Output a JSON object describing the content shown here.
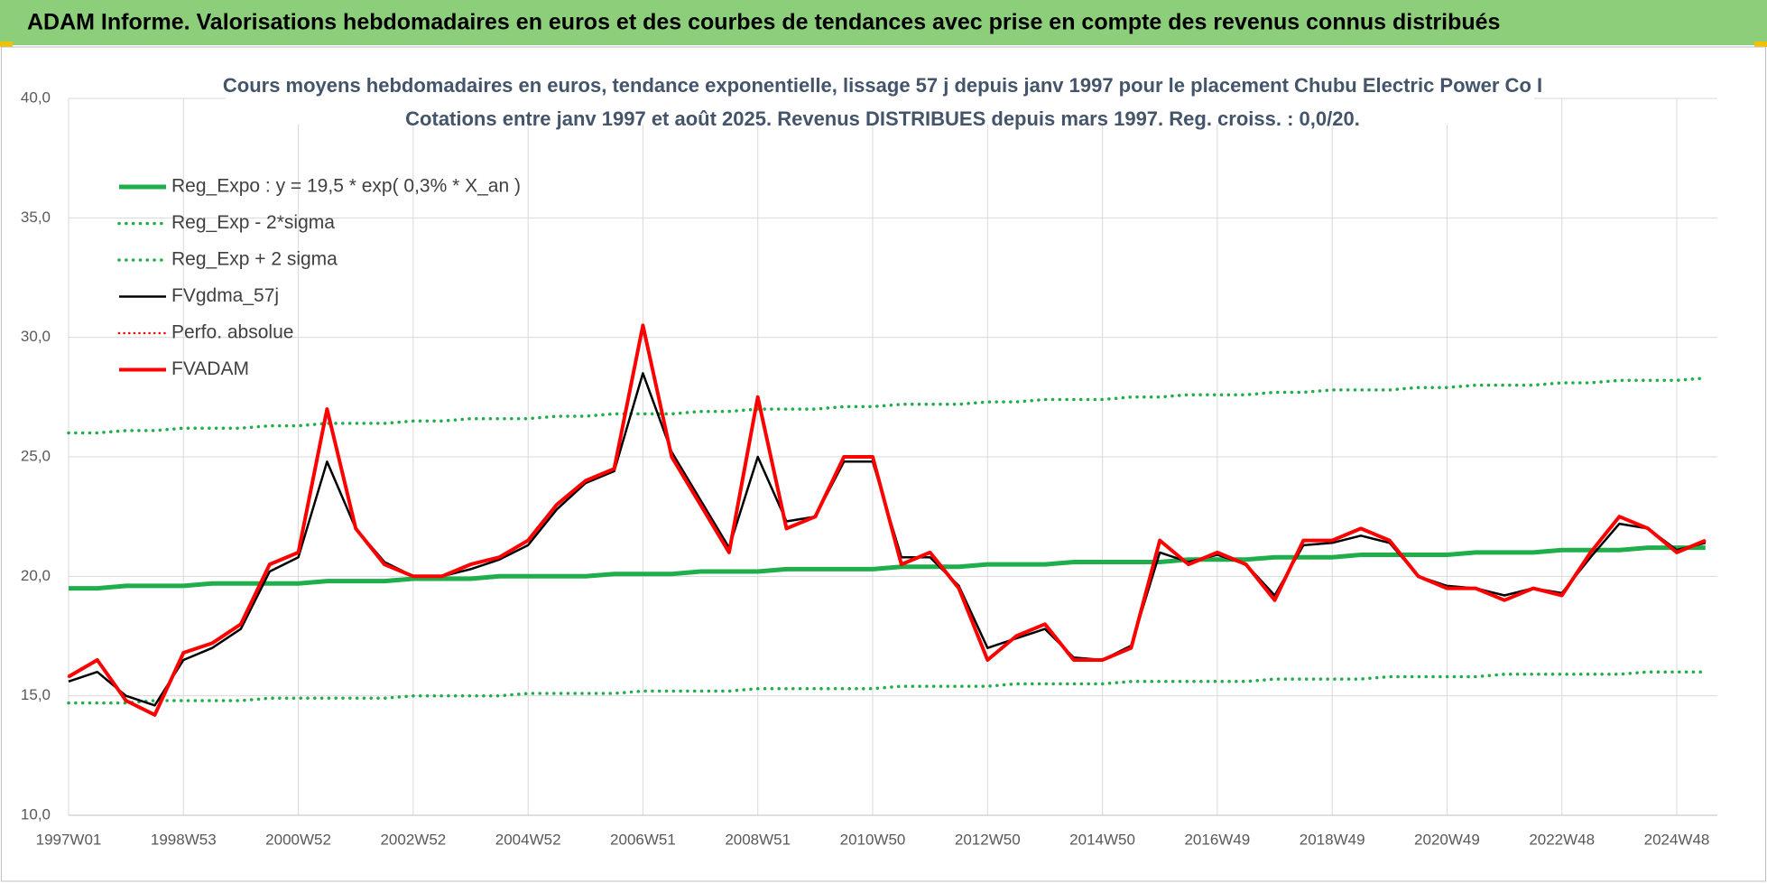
{
  "header": {
    "title": "ADAM Informe. Valorisations hebdomadaires en euros et des courbes de tendances avec prise en compte des revenus connus distribués"
  },
  "chart_data": {
    "type": "line",
    "title": "Cours moyens hebdomadaires en euros, tendance exponentielle, lissage 57 j depuis janv 1997  pour le placement Chubu Electric Power Co I",
    "subtitle": "Cotations entre janv 1997 et août 2025.  Revenus DISTRIBUES depuis mars 1997. Reg. croiss. : 0,0/20.",
    "categories": [
      "1997W01",
      null,
      null,
      null,
      "1998W53",
      null,
      null,
      null,
      "2000W52",
      null,
      null,
      null,
      "2002W52",
      null,
      null,
      null,
      "2004W52",
      null,
      null,
      null,
      "2006W51",
      null,
      null,
      null,
      "2008W51",
      null,
      null,
      null,
      "2010W50",
      null,
      null,
      null,
      "2012W50",
      null,
      null,
      null,
      "2014W50",
      null,
      null,
      null,
      "2016W49",
      null,
      null,
      null,
      "2018W49",
      null,
      null,
      null,
      "2020W49",
      null,
      null,
      null,
      "2022W48",
      null,
      null,
      null,
      "2024W48",
      null
    ],
    "ylim": [
      10,
      40
    ],
    "yticks": [
      {
        "value": 10,
        "label": "10,0"
      },
      {
        "value": 15,
        "label": "15,0"
      },
      {
        "value": 20,
        "label": "20,0"
      },
      {
        "value": 25,
        "label": "25,0"
      },
      {
        "value": 30,
        "label": "30,0"
      },
      {
        "value": 35,
        "label": "35,0"
      },
      {
        "value": 40,
        "label": "40,0"
      }
    ],
    "grid": true,
    "legend": "upper left",
    "series": [
      {
        "name": "Reg_Expo : y = 19,5 * exp( 0,3% *  X_an )",
        "color": "#1fae4b",
        "style": "solid",
        "width": 5,
        "values": [
          19.5,
          19.5,
          19.6,
          19.6,
          19.6,
          19.7,
          19.7,
          19.7,
          19.7,
          19.8,
          19.8,
          19.8,
          19.9,
          19.9,
          19.9,
          20.0,
          20.0,
          20.0,
          20.0,
          20.1,
          20.1,
          20.1,
          20.2,
          20.2,
          20.2,
          20.3,
          20.3,
          20.3,
          20.3,
          20.4,
          20.4,
          20.4,
          20.5,
          20.5,
          20.5,
          20.6,
          20.6,
          20.6,
          20.6,
          20.7,
          20.7,
          20.7,
          20.8,
          20.8,
          20.8,
          20.9,
          20.9,
          20.9,
          20.9,
          21.0,
          21.0,
          21.0,
          21.1,
          21.1,
          21.1,
          21.2,
          21.2,
          21.2
        ]
      },
      {
        "name": "Reg_Exp - 2*sigma",
        "color": "#1fae4b",
        "style": "dotted",
        "width": 3.5,
        "values": [
          14.7,
          14.7,
          14.7,
          14.8,
          14.8,
          14.8,
          14.8,
          14.9,
          14.9,
          14.9,
          14.9,
          14.9,
          15.0,
          15.0,
          15.0,
          15.0,
          15.1,
          15.1,
          15.1,
          15.1,
          15.2,
          15.2,
          15.2,
          15.2,
          15.3,
          15.3,
          15.3,
          15.3,
          15.3,
          15.4,
          15.4,
          15.4,
          15.4,
          15.5,
          15.5,
          15.5,
          15.5,
          15.6,
          15.6,
          15.6,
          15.6,
          15.6,
          15.7,
          15.7,
          15.7,
          15.7,
          15.8,
          15.8,
          15.8,
          15.8,
          15.9,
          15.9,
          15.9,
          15.9,
          15.9,
          16.0,
          16.0,
          16.0
        ]
      },
      {
        "name": "Reg_Exp + 2 sigma",
        "color": "#1fae4b",
        "style": "dotted",
        "width": 3.5,
        "values": [
          26.0,
          26.0,
          26.1,
          26.1,
          26.2,
          26.2,
          26.2,
          26.3,
          26.3,
          26.4,
          26.4,
          26.4,
          26.5,
          26.5,
          26.6,
          26.6,
          26.6,
          26.7,
          26.7,
          26.8,
          26.8,
          26.8,
          26.9,
          26.9,
          27.0,
          27.0,
          27.0,
          27.1,
          27.1,
          27.2,
          27.2,
          27.2,
          27.3,
          27.3,
          27.4,
          27.4,
          27.4,
          27.5,
          27.5,
          27.6,
          27.6,
          27.6,
          27.7,
          27.7,
          27.8,
          27.8,
          27.8,
          27.9,
          27.9,
          28.0,
          28.0,
          28.0,
          28.1,
          28.1,
          28.2,
          28.2,
          28.2,
          28.3
        ]
      },
      {
        "name": "FVgdma_57j",
        "color": "#000000",
        "style": "solid",
        "width": 2.5,
        "values": [
          15.6,
          16.0,
          15.0,
          14.6,
          16.5,
          17.0,
          17.8,
          20.2,
          20.8,
          24.8,
          22.0,
          20.6,
          20.0,
          20.0,
          20.3,
          20.7,
          21.3,
          22.8,
          23.9,
          24.4,
          28.5,
          25.2,
          23.2,
          21.2,
          25.0,
          22.3,
          22.5,
          24.8,
          24.8,
          20.8,
          20.8,
          19.6,
          17.0,
          17.4,
          17.8,
          16.6,
          16.5,
          17.1,
          21.0,
          20.6,
          20.9,
          20.5,
          19.2,
          21.3,
          21.4,
          21.7,
          21.4,
          20.0,
          19.6,
          19.5,
          19.2,
          19.5,
          19.3,
          20.8,
          22.2,
          22.0,
          21.1,
          21.4
        ]
      },
      {
        "name": "Perfo. absolue",
        "color": "#ff0000",
        "style": "dotted",
        "width": 2.5,
        "values": [
          15.8,
          16.5,
          14.8,
          14.2,
          16.8,
          17.2,
          18.0,
          20.5,
          21.0,
          27.0,
          22.0,
          20.5,
          20.0,
          20.0,
          20.5,
          20.8,
          21.5,
          23.0,
          24.0,
          24.5,
          30.5,
          25.0,
          23.0,
          21.0,
          27.5,
          22.0,
          22.5,
          25.0,
          25.0,
          20.5,
          21.0,
          19.5,
          16.5,
          17.5,
          18.0,
          16.5,
          16.5,
          17.0,
          21.5,
          20.5,
          21.0,
          20.5,
          19.0,
          21.5,
          21.5,
          22.0,
          21.5,
          20.0,
          19.5,
          19.5,
          19.0,
          19.5,
          19.2,
          21.0,
          22.5,
          22.0,
          21.0,
          21.5
        ]
      },
      {
        "name": "FVADAM",
        "color": "#ff0000",
        "style": "solid",
        "width": 4,
        "values": [
          15.8,
          16.5,
          14.8,
          14.2,
          16.8,
          17.2,
          18.0,
          20.5,
          21.0,
          27.0,
          22.0,
          20.5,
          20.0,
          20.0,
          20.5,
          20.8,
          21.5,
          23.0,
          24.0,
          24.5,
          30.5,
          25.0,
          23.0,
          21.0,
          27.5,
          22.0,
          22.5,
          25.0,
          25.0,
          20.5,
          21.0,
          19.5,
          16.5,
          17.5,
          18.0,
          16.5,
          16.5,
          17.0,
          21.5,
          20.5,
          21.0,
          20.5,
          19.0,
          21.5,
          21.5,
          22.0,
          21.5,
          20.0,
          19.5,
          19.5,
          19.0,
          19.5,
          19.2,
          21.0,
          22.5,
          22.0,
          21.0,
          21.5
        ]
      }
    ]
  }
}
